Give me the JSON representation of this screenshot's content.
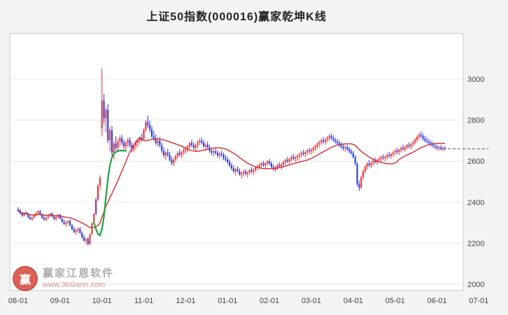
{
  "title": "上证50指数(000016)赢家乾坤K线",
  "watermark": {
    "brand": "赢家江恩软件",
    "url": "www.36Gann.com",
    "logo_text": "赢"
  },
  "chart_data": {
    "type": "candlestick",
    "title": "上证50指数(000016)赢家乾坤K线",
    "x_tick_labels": [
      "08-01",
      "09-01",
      "10-01",
      "11-01",
      "12-01",
      "01-01",
      "02-01",
      "03-01",
      "04-01",
      "05-01",
      "06-01",
      "07-01"
    ],
    "y_ticks": [
      2000,
      2200,
      2400,
      2600,
      2800,
      3000
    ],
    "ylim": [
      1969,
      3222
    ],
    "candles_per_month": 21,
    "ma_period": 20,
    "last_price": 2660,
    "legend": "none",
    "grid": true,
    "colors": {
      "up": "#e62c2c",
      "down": "#2232d8",
      "ma": "#d92b2b",
      "signal": "#1ca23c",
      "grid": "#e8e8e8",
      "frame": "#c9c9c9",
      "dashed": "#555555",
      "axis_text": "#444444"
    },
    "highlight": {
      "index": 39,
      "color": "#8820a8"
    },
    "green_line": [
      [
        38,
        2300
      ],
      [
        39,
        2268
      ],
      [
        40,
        2245
      ],
      [
        41,
        2238
      ],
      [
        42,
        2268
      ],
      [
        43,
        2330
      ],
      [
        44,
        2425
      ],
      [
        45,
        2515
      ],
      [
        46,
        2580
      ],
      [
        47,
        2618
      ],
      [
        48,
        2638
      ],
      [
        50,
        2650
      ],
      [
        52,
        2652
      ],
      [
        54,
        2650
      ]
    ],
    "candles": [
      [
        2365,
        2375,
        2352,
        2358
      ],
      [
        2358,
        2366,
        2340,
        2346
      ],
      [
        2346,
        2352,
        2328,
        2334
      ],
      [
        2334,
        2350,
        2330,
        2347
      ],
      [
        2347,
        2356,
        2338,
        2342
      ],
      [
        2342,
        2348,
        2320,
        2326
      ],
      [
        2326,
        2338,
        2312,
        2318
      ],
      [
        2318,
        2330,
        2308,
        2325
      ],
      [
        2325,
        2342,
        2320,
        2338
      ],
      [
        2338,
        2352,
        2332,
        2348
      ],
      [
        2348,
        2360,
        2340,
        2355
      ],
      [
        2355,
        2362,
        2335,
        2340
      ],
      [
        2340,
        2346,
        2318,
        2322
      ],
      [
        2322,
        2334,
        2310,
        2315
      ],
      [
        2315,
        2328,
        2306,
        2324
      ],
      [
        2324,
        2340,
        2318,
        2336
      ],
      [
        2336,
        2348,
        2328,
        2344
      ],
      [
        2344,
        2350,
        2326,
        2330
      ],
      [
        2330,
        2338,
        2312,
        2318
      ],
      [
        2318,
        2332,
        2308,
        2328
      ],
      [
        2328,
        2342,
        2320,
        2338
      ],
      [
        2338,
        2344,
        2316,
        2320
      ],
      [
        2320,
        2328,
        2298,
        2304
      ],
      [
        2304,
        2316,
        2288,
        2294
      ],
      [
        2294,
        2308,
        2280,
        2300
      ],
      [
        2300,
        2312,
        2290,
        2308
      ],
      [
        2308,
        2316,
        2282,
        2286
      ],
      [
        2286,
        2294,
        2262,
        2268
      ],
      [
        2268,
        2280,
        2248,
        2254
      ],
      [
        2254,
        2270,
        2240,
        2262
      ],
      [
        2262,
        2276,
        2252,
        2270
      ],
      [
        2270,
        2278,
        2244,
        2250
      ],
      [
        2250,
        2258,
        2222,
        2228
      ],
      [
        2228,
        2240,
        2206,
        2212
      ],
      [
        2212,
        2226,
        2194,
        2220
      ],
      [
        2220,
        2230,
        2188,
        2196
      ],
      [
        2196,
        2248,
        2192,
        2244
      ],
      [
        2244,
        2302,
        2240,
        2296
      ],
      [
        2296,
        2348,
        2290,
        2342
      ],
      [
        2342,
        2420,
        2338,
        2412
      ],
      [
        2412,
        2488,
        2405,
        2480
      ],
      [
        2480,
        2530,
        2458,
        2518
      ],
      [
        2760,
        3052,
        2720,
        2895
      ],
      [
        2895,
        2928,
        2780,
        2808
      ],
      [
        2808,
        2862,
        2742,
        2850
      ],
      [
        2850,
        2878,
        2688,
        2702
      ],
      [
        2702,
        2765,
        2648,
        2750
      ],
      [
        2750,
        2772,
        2628,
        2642
      ],
      [
        2642,
        2698,
        2610,
        2686
      ],
      [
        2686,
        2722,
        2652,
        2665
      ],
      [
        2665,
        2708,
        2645,
        2696
      ],
      [
        2696,
        2725,
        2670,
        2712
      ],
      [
        2712,
        2728,
        2678,
        2690
      ],
      [
        2690,
        2705,
        2658,
        2672
      ],
      [
        2672,
        2698,
        2652,
        2690
      ],
      [
        2690,
        2714,
        2668,
        2702
      ],
      [
        2702,
        2716,
        2665,
        2678
      ],
      [
        2678,
        2692,
        2642,
        2656
      ],
      [
        2656,
        2685,
        2644,
        2675
      ],
      [
        2675,
        2700,
        2658,
        2690
      ],
      [
        2690,
        2712,
        2672,
        2703
      ],
      [
        2703,
        2722,
        2685,
        2715
      ],
      [
        2715,
        2735,
        2695,
        2708
      ],
      [
        2708,
        2760,
        2700,
        2752
      ],
      [
        2752,
        2800,
        2740,
        2790
      ],
      [
        2790,
        2822,
        2762,
        2775
      ],
      [
        2775,
        2798,
        2740,
        2755
      ],
      [
        2755,
        2772,
        2712,
        2722
      ],
      [
        2722,
        2748,
        2700,
        2710
      ],
      [
        2710,
        2730,
        2678,
        2688
      ],
      [
        2688,
        2712,
        2670,
        2700
      ],
      [
        2700,
        2718,
        2668,
        2676
      ],
      [
        2676,
        2690,
        2640,
        2650
      ],
      [
        2650,
        2668,
        2618,
        2628
      ],
      [
        2628,
        2650,
        2606,
        2642
      ],
      [
        2642,
        2660,
        2620,
        2632
      ],
      [
        2632,
        2645,
        2596,
        2605
      ],
      [
        2605,
        2622,
        2580,
        2590
      ],
      [
        2590,
        2615,
        2575,
        2608
      ],
      [
        2608,
        2632,
        2598,
        2625
      ],
      [
        2625,
        2648,
        2612,
        2640
      ],
      [
        2640,
        2658,
        2622,
        2632
      ],
      [
        2632,
        2650,
        2615,
        2645
      ],
      [
        2645,
        2665,
        2630,
        2655
      ],
      [
        2655,
        2672,
        2638,
        2662
      ],
      [
        2662,
        2680,
        2645,
        2672
      ],
      [
        2672,
        2695,
        2658,
        2688
      ],
      [
        2688,
        2705,
        2670,
        2678
      ],
      [
        2678,
        2692,
        2655,
        2665
      ],
      [
        2665,
        2685,
        2650,
        2678
      ],
      [
        2678,
        2700,
        2662,
        2694
      ],
      [
        2694,
        2712,
        2678,
        2700
      ],
      [
        2700,
        2715,
        2682,
        2690
      ],
      [
        2690,
        2702,
        2665,
        2672
      ],
      [
        2672,
        2688,
        2652,
        2680
      ],
      [
        2680,
        2695,
        2660,
        2668
      ],
      [
        2668,
        2680,
        2640,
        2650
      ],
      [
        2650,
        2665,
        2630,
        2642
      ],
      [
        2642,
        2658,
        2622,
        2648
      ],
      [
        2648,
        2662,
        2632,
        2640
      ],
      [
        2640,
        2652,
        2618,
        2628
      ],
      [
        2628,
        2645,
        2612,
        2636
      ],
      [
        2636,
        2650,
        2620,
        2630
      ],
      [
        2630,
        2642,
        2605,
        2615
      ],
      [
        2615,
        2630,
        2598,
        2608
      ],
      [
        2608,
        2620,
        2585,
        2595
      ],
      [
        2595,
        2608,
        2570,
        2578
      ],
      [
        2578,
        2592,
        2555,
        2565
      ],
      [
        2565,
        2580,
        2542,
        2550
      ],
      [
        2550,
        2568,
        2530,
        2560
      ],
      [
        2560,
        2575,
        2545,
        2552
      ],
      [
        2552,
        2565,
        2528,
        2535
      ],
      [
        2535,
        2550,
        2515,
        2542
      ],
      [
        2542,
        2558,
        2525,
        2548
      ],
      [
        2548,
        2560,
        2530,
        2538
      ],
      [
        2538,
        2552,
        2520,
        2545
      ],
      [
        2545,
        2562,
        2535,
        2556
      ],
      [
        2556,
        2570,
        2540,
        2550
      ],
      [
        2550,
        2565,
        2532,
        2558
      ],
      [
        2558,
        2575,
        2545,
        2568
      ],
      [
        2568,
        2582,
        2552,
        2575
      ],
      [
        2575,
        2590,
        2560,
        2582
      ],
      [
        2582,
        2596,
        2568,
        2588
      ],
      [
        2588,
        2600,
        2572,
        2580
      ],
      [
        2580,
        2595,
        2565,
        2590
      ],
      [
        2590,
        2605,
        2578,
        2598
      ],
      [
        2598,
        2610,
        2580,
        2588
      ],
      [
        2588,
        2600,
        2565,
        2572
      ],
      [
        2572,
        2585,
        2552,
        2560
      ],
      [
        2560,
        2578,
        2548,
        2570
      ],
      [
        2570,
        2588,
        2558,
        2580
      ],
      [
        2580,
        2595,
        2565,
        2575
      ],
      [
        2575,
        2590,
        2560,
        2585
      ],
      [
        2585,
        2602,
        2572,
        2596
      ],
      [
        2596,
        2612,
        2582,
        2605
      ],
      [
        2605,
        2620,
        2590,
        2598
      ],
      [
        2598,
        2615,
        2585,
        2610
      ],
      [
        2610,
        2628,
        2598,
        2620
      ],
      [
        2620,
        2635,
        2605,
        2612
      ],
      [
        2612,
        2626,
        2596,
        2618
      ],
      [
        2618,
        2632,
        2602,
        2625
      ],
      [
        2625,
        2640,
        2610,
        2632
      ],
      [
        2632,
        2648,
        2618,
        2640
      ],
      [
        2640,
        2655,
        2625,
        2635
      ],
      [
        2635,
        2650,
        2620,
        2645
      ],
      [
        2645,
        2660,
        2630,
        2652
      ],
      [
        2652,
        2665,
        2635,
        2648
      ],
      [
        2648,
        2662,
        2632,
        2655
      ],
      [
        2655,
        2672,
        2640,
        2665
      ],
      [
        2665,
        2682,
        2650,
        2675
      ],
      [
        2675,
        2692,
        2660,
        2685
      ],
      [
        2685,
        2700,
        2668,
        2692
      ],
      [
        2692,
        2710,
        2678,
        2702
      ],
      [
        2702,
        2718,
        2685,
        2695
      ],
      [
        2695,
        2712,
        2680,
        2705
      ],
      [
        2705,
        2722,
        2690,
        2715
      ],
      [
        2715,
        2732,
        2700,
        2722
      ],
      [
        2722,
        2735,
        2705,
        2712
      ],
      [
        2712,
        2726,
        2695,
        2702
      ],
      [
        2702,
        2715,
        2685,
        2695
      ],
      [
        2695,
        2708,
        2678,
        2688
      ],
      [
        2688,
        2700,
        2668,
        2678
      ],
      [
        2678,
        2692,
        2660,
        2670
      ],
      [
        2670,
        2685,
        2652,
        2662
      ],
      [
        2662,
        2675,
        2645,
        2668
      ],
      [
        2668,
        2680,
        2650,
        2658
      ],
      [
        2658,
        2670,
        2638,
        2648
      ],
      [
        2648,
        2660,
        2630,
        2640
      ],
      [
        2640,
        2650,
        2612,
        2620
      ],
      [
        2620,
        2628,
        2580,
        2588
      ],
      [
        2588,
        2595,
        2478,
        2488
      ],
      [
        2488,
        2505,
        2455,
        2470
      ],
      [
        2470,
        2530,
        2465,
        2522
      ],
      [
        2522,
        2560,
        2510,
        2552
      ],
      [
        2552,
        2580,
        2540,
        2572
      ],
      [
        2572,
        2595,
        2558,
        2588
      ],
      [
        2588,
        2605,
        2570,
        2580
      ],
      [
        2580,
        2598,
        2565,
        2592
      ],
      [
        2592,
        2610,
        2578,
        2602
      ],
      [
        2602,
        2618,
        2588,
        2595
      ],
      [
        2595,
        2612,
        2582,
        2605
      ],
      [
        2605,
        2620,
        2592,
        2612
      ],
      [
        2612,
        2628,
        2598,
        2620
      ],
      [
        2620,
        2632,
        2605,
        2615
      ],
      [
        2615,
        2628,
        2600,
        2622
      ],
      [
        2622,
        2638,
        2608,
        2630
      ],
      [
        2630,
        2645,
        2615,
        2625
      ],
      [
        2625,
        2640,
        2610,
        2635
      ],
      [
        2635,
        2650,
        2620,
        2642
      ],
      [
        2642,
        2658,
        2628,
        2650
      ],
      [
        2650,
        2665,
        2635,
        2645
      ],
      [
        2645,
        2660,
        2630,
        2655
      ],
      [
        2655,
        2672,
        2642,
        2665
      ],
      [
        2665,
        2680,
        2650,
        2658
      ],
      [
        2658,
        2675,
        2645,
        2668
      ],
      [
        2668,
        2685,
        2655,
        2678
      ],
      [
        2678,
        2692,
        2662,
        2672
      ],
      [
        2672,
        2688,
        2658,
        2682
      ],
      [
        2682,
        2700,
        2670,
        2692
      ],
      [
        2692,
        2712,
        2680,
        2705
      ],
      [
        2705,
        2725,
        2692,
        2718
      ],
      [
        2718,
        2738,
        2705,
        2728
      ],
      [
        2728,
        2745,
        2712,
        2722
      ],
      [
        2722,
        2735,
        2700,
        2710
      ],
      [
        2710,
        2724,
        2692,
        2700
      ],
      [
        2700,
        2715,
        2685,
        2695
      ],
      [
        2695,
        2708,
        2678,
        2688
      ],
      [
        2688,
        2700,
        2670,
        2680
      ],
      [
        2680,
        2694,
        2665,
        2675
      ],
      [
        2675,
        2688,
        2660,
        2670
      ],
      [
        2670,
        2680,
        2655,
        2662
      ],
      [
        2662,
        2674,
        2650,
        2668
      ],
      [
        2668,
        2678,
        2652,
        2658
      ],
      [
        2658,
        2670,
        2648,
        2665
      ],
      [
        2665,
        2672,
        2652,
        2660
      ]
    ]
  }
}
